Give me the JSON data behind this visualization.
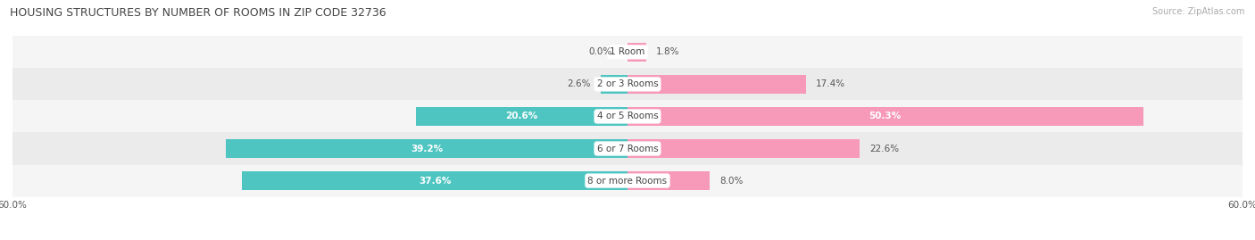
{
  "title": "HOUSING STRUCTURES BY NUMBER OF ROOMS IN ZIP CODE 32736",
  "source": "Source: ZipAtlas.com",
  "categories": [
    "1 Room",
    "2 or 3 Rooms",
    "4 or 5 Rooms",
    "6 or 7 Rooms",
    "8 or more Rooms"
  ],
  "owner_values": [
    0.0,
    2.6,
    20.6,
    39.2,
    37.6
  ],
  "renter_values": [
    1.8,
    17.4,
    50.3,
    22.6,
    8.0
  ],
  "owner_color": "#4ec5c1",
  "renter_color": "#f799b8",
  "row_bg_light": "#f5f5f5",
  "row_bg_dark": "#ebebeb",
  "axis_limit": 60.0,
  "label_fontsize": 7.5,
  "title_fontsize": 9,
  "source_fontsize": 7,
  "legend_fontsize": 8,
  "category_fontsize": 7.5,
  "tick_fontsize": 7.5,
  "bar_height": 0.6
}
